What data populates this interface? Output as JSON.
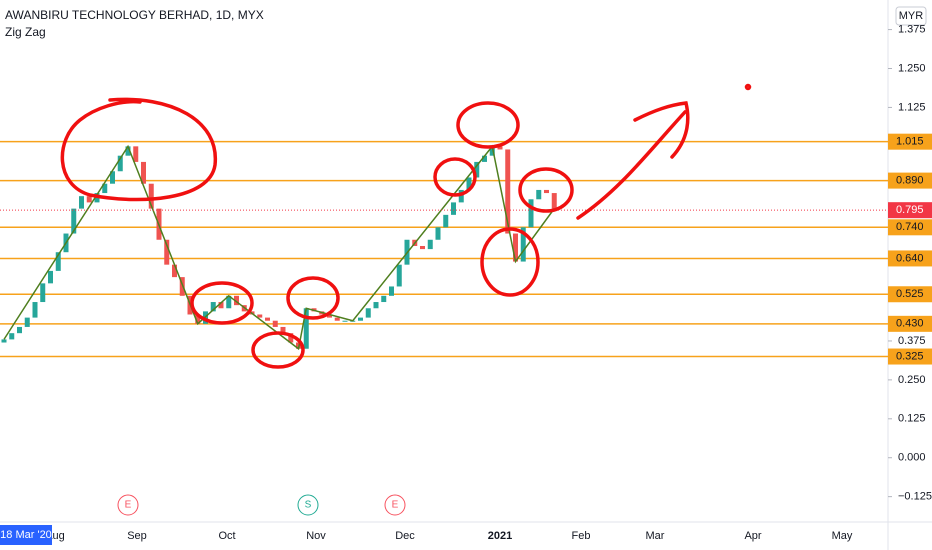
{
  "chart_data": {
    "type": "candlestick",
    "title": "AWANBIRU TECHNOLOGY BERHAD, 1D, MYX",
    "currency": "MYR",
    "open": [
      0.37,
      0.38,
      0.4,
      0.42,
      0.45,
      0.5,
      0.56,
      0.6,
      0.66,
      0.72,
      0.8,
      0.84,
      0.82,
      0.85,
      0.88,
      0.92,
      0.97,
      1.0,
      0.95,
      0.88,
      0.8,
      0.7,
      0.62,
      0.58,
      0.52,
      0.46,
      0.43,
      0.47,
      0.5,
      0.48,
      0.52,
      0.49,
      0.47,
      0.46,
      0.45,
      0.44,
      0.42,
      0.4,
      0.37,
      0.35,
      0.48,
      0.47,
      0.46,
      0.45,
      0.44,
      0.44,
      0.44,
      0.45,
      0.48,
      0.5,
      0.52,
      0.55,
      0.62,
      0.7,
      0.68,
      0.67,
      0.7,
      0.74,
      0.78,
      0.82,
      0.86,
      0.9,
      0.95,
      0.97,
      1.0,
      0.99,
      0.72,
      0.63,
      0.74,
      0.83,
      0.86,
      0.85
    ],
    "close": [
      0.38,
      0.4,
      0.42,
      0.45,
      0.5,
      0.56,
      0.6,
      0.66,
      0.72,
      0.8,
      0.84,
      0.82,
      0.85,
      0.88,
      0.92,
      0.97,
      1.0,
      0.95,
      0.88,
      0.8,
      0.7,
      0.62,
      0.58,
      0.52,
      0.46,
      0.43,
      0.47,
      0.5,
      0.48,
      0.52,
      0.49,
      0.47,
      0.46,
      0.45,
      0.44,
      0.42,
      0.4,
      0.37,
      0.35,
      0.48,
      0.47,
      0.46,
      0.45,
      0.44,
      0.44,
      0.44,
      0.45,
      0.48,
      0.5,
      0.52,
      0.55,
      0.62,
      0.7,
      0.68,
      0.67,
      0.7,
      0.74,
      0.78,
      0.82,
      0.86,
      0.9,
      0.95,
      0.97,
      1.0,
      0.99,
      0.72,
      0.63,
      0.74,
      0.83,
      0.86,
      0.85,
      0.8
    ],
    "up_color": "#26a69a",
    "down_color": "#ef5350",
    "zigzag": {
      "name": "Zig Zag",
      "color": "#4f7f1f",
      "x": [
        0,
        16,
        25,
        29,
        38,
        39,
        45,
        63,
        66,
        71
      ],
      "values": [
        0.38,
        1.0,
        0.43,
        0.52,
        0.35,
        0.48,
        0.44,
        1.0,
        0.63,
        0.8
      ]
    },
    "levels": [
      {
        "value": 1.015,
        "label": "1.015"
      },
      {
        "value": 0.89,
        "label": "0.890"
      },
      {
        "value": 0.74,
        "label": "0.740"
      },
      {
        "value": 0.64,
        "label": "0.640"
      },
      {
        "value": 0.525,
        "label": "0.525"
      },
      {
        "value": 0.43,
        "label": "0.430"
      },
      {
        "value": 0.325,
        "label": "0.325"
      }
    ],
    "level_color": "#f7a21b",
    "last_price": {
      "value": 0.795,
      "label": "0.795"
    },
    "last_color": "#f23645",
    "ylim": [
      -0.2,
      1.47
    ],
    "yticks": [
      {
        "value": 1.375,
        "label": "1.375"
      },
      {
        "value": 1.25,
        "label": "1.250"
      },
      {
        "value": 1.125,
        "label": "1.125"
      },
      {
        "value": 0.375,
        "label": "0.375"
      },
      {
        "value": 0.25,
        "label": "0.250"
      },
      {
        "value": 0.125,
        "label": "0.125"
      },
      {
        "value": 0,
        "label": "0.000"
      },
      {
        "value": -0.125,
        "label": "−0.125"
      }
    ],
    "x_labels": [
      "Aug",
      "Sep",
      "Oct",
      "Nov",
      "Dec",
      "2021",
      "Feb",
      "Mar",
      "Apr",
      "May"
    ],
    "events": [
      "E",
      "S",
      "E"
    ],
    "date_badge": "18 Mar '20"
  }
}
